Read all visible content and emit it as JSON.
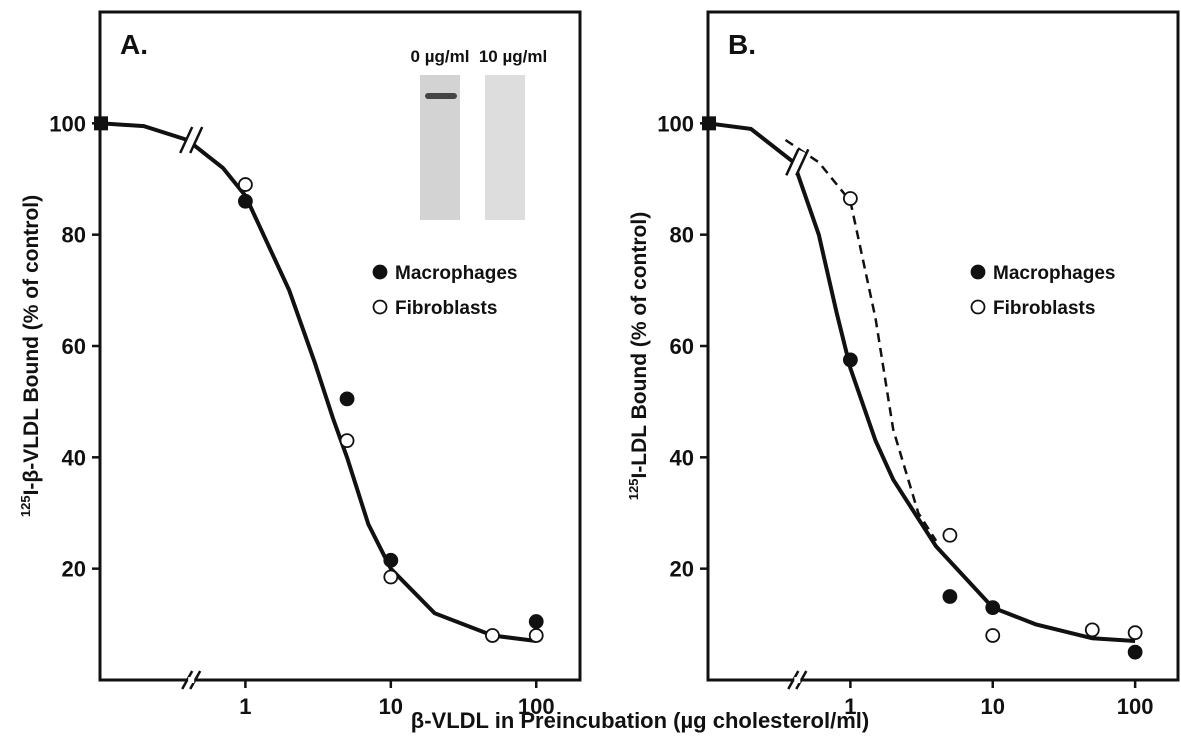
{
  "figure_xlabel": "β-VLDL in Preincubation (µg cholesterol/ml)",
  "chart_data": [
    {
      "type": "scatter",
      "title": "A.",
      "ylabel_superscript": "125",
      "ylabel": "I-β-VLDL Bound (% of control)",
      "inset_labels": [
        "0 µg/ml",
        "10 µg/ml"
      ],
      "log_x": true,
      "xlim": [
        0.1,
        200
      ],
      "xticks": [
        1,
        10,
        100
      ],
      "ylim": [
        0,
        120
      ],
      "yticks": [
        20,
        40,
        60,
        80,
        100
      ],
      "legend": "right-middle",
      "control_point": 100,
      "series": [
        {
          "name": "Macrophages",
          "marker": "filled",
          "x": [
            1,
            5,
            10,
            100
          ],
          "values": [
            86,
            50.5,
            21.5,
            10.5
          ]
        },
        {
          "name": "Fibroblasts",
          "marker": "open",
          "x": [
            1,
            5,
            10,
            50,
            100
          ],
          "values": [
            89,
            43,
            18.5,
            8,
            8
          ]
        }
      ],
      "curves": [
        {
          "style": "solid",
          "x": [
            0.1,
            0.2,
            0.4,
            0.7,
            1,
            2,
            3,
            4,
            5,
            7,
            10,
            20,
            50,
            100
          ],
          "values": [
            100,
            99.5,
            97,
            92,
            87,
            70,
            57,
            47,
            40,
            28,
            20,
            12,
            8,
            7
          ]
        }
      ]
    },
    {
      "type": "scatter",
      "title": "B.",
      "ylabel_superscript": "125",
      "ylabel": "I-LDL Bound (% of control)",
      "log_x": true,
      "xlim": [
        0.1,
        200
      ],
      "xticks": [
        1,
        10,
        100
      ],
      "ylim": [
        0,
        120
      ],
      "yticks": [
        20,
        40,
        60,
        80,
        100
      ],
      "legend": "right-middle",
      "control_point": 100,
      "series": [
        {
          "name": "Macrophages",
          "marker": "filled",
          "x": [
            1,
            5,
            10,
            100
          ],
          "values": [
            57.5,
            15,
            13,
            5
          ]
        },
        {
          "name": "Fibroblasts",
          "marker": "open",
          "x": [
            1,
            5,
            10,
            50,
            100
          ],
          "values": [
            86.5,
            26,
            8,
            9,
            8.5
          ]
        }
      ],
      "curves": [
        {
          "style": "solid",
          "x": [
            0.1,
            0.2,
            0.4,
            0.6,
            0.8,
            1,
            1.5,
            2,
            4,
            10,
            20,
            50,
            100
          ],
          "values": [
            100,
            99,
            93,
            80,
            66,
            56,
            43,
            36,
            24,
            13,
            10,
            7.5,
            7
          ]
        },
        {
          "style": "dashed",
          "x": [
            0.35,
            0.6,
            1,
            1.5,
            2,
            3,
            4
          ],
          "values": [
            97,
            93,
            86,
            65,
            45,
            30,
            25
          ]
        }
      ]
    }
  ]
}
